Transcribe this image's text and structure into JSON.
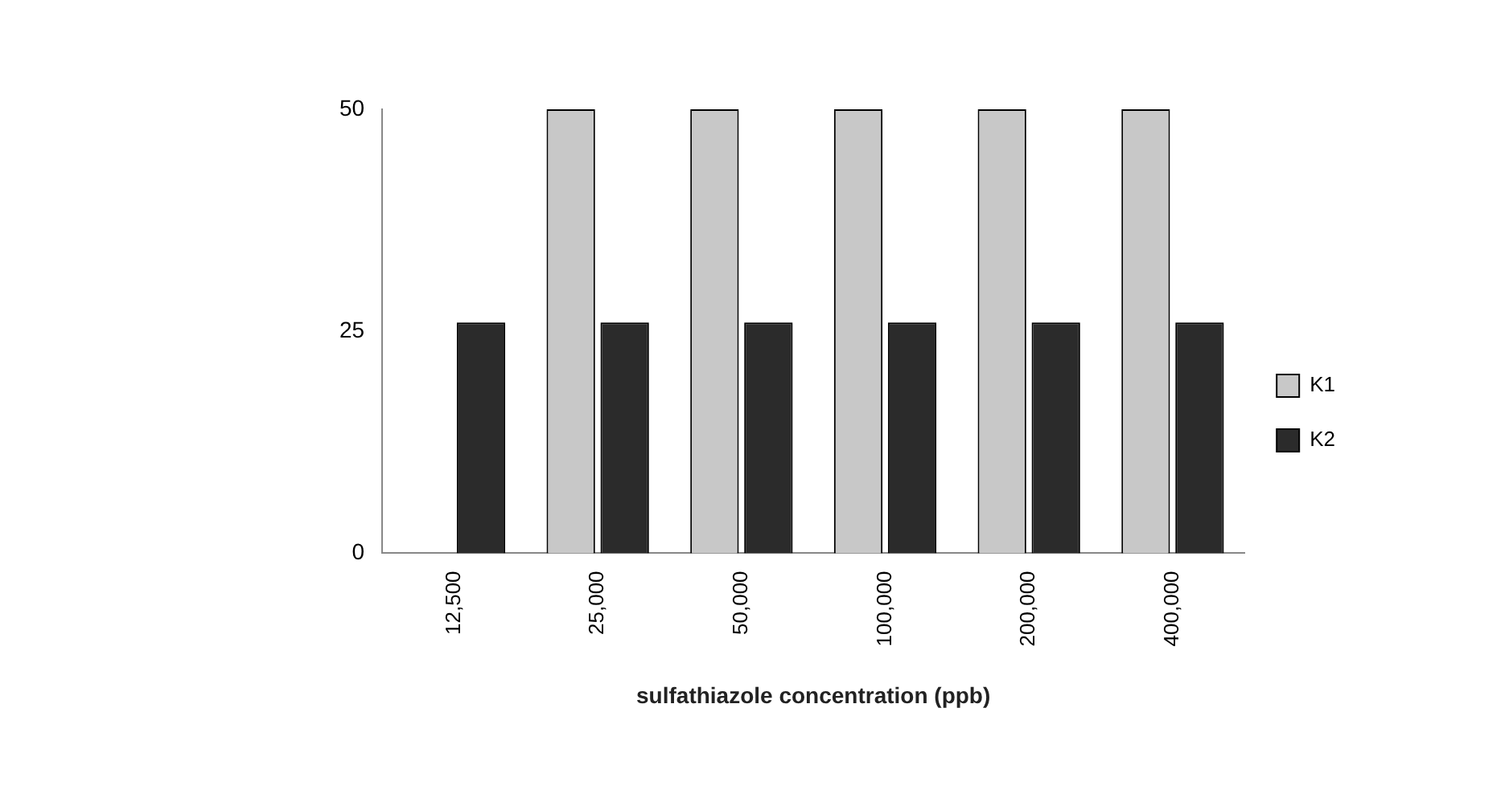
{
  "chart_data": {
    "type": "bar",
    "xlabel": "sulfathiazole concentration (ppb)",
    "categories": [
      "12,500",
      "25,000",
      "50,000",
      "100,000",
      "200,000",
      "400,000"
    ],
    "series": [
      {
        "name": "K1",
        "color": "#c8c8c8",
        "values": [
          0,
          50,
          50,
          50,
          50,
          50
        ]
      },
      {
        "name": "K2",
        "color": "#2b2b2b",
        "values": [
          26,
          26,
          26,
          26,
          26,
          26
        ]
      }
    ],
    "ylim": [
      0,
      50
    ],
    "yticks": [
      0,
      25,
      50
    ],
    "grid": false,
    "legend": "right"
  }
}
